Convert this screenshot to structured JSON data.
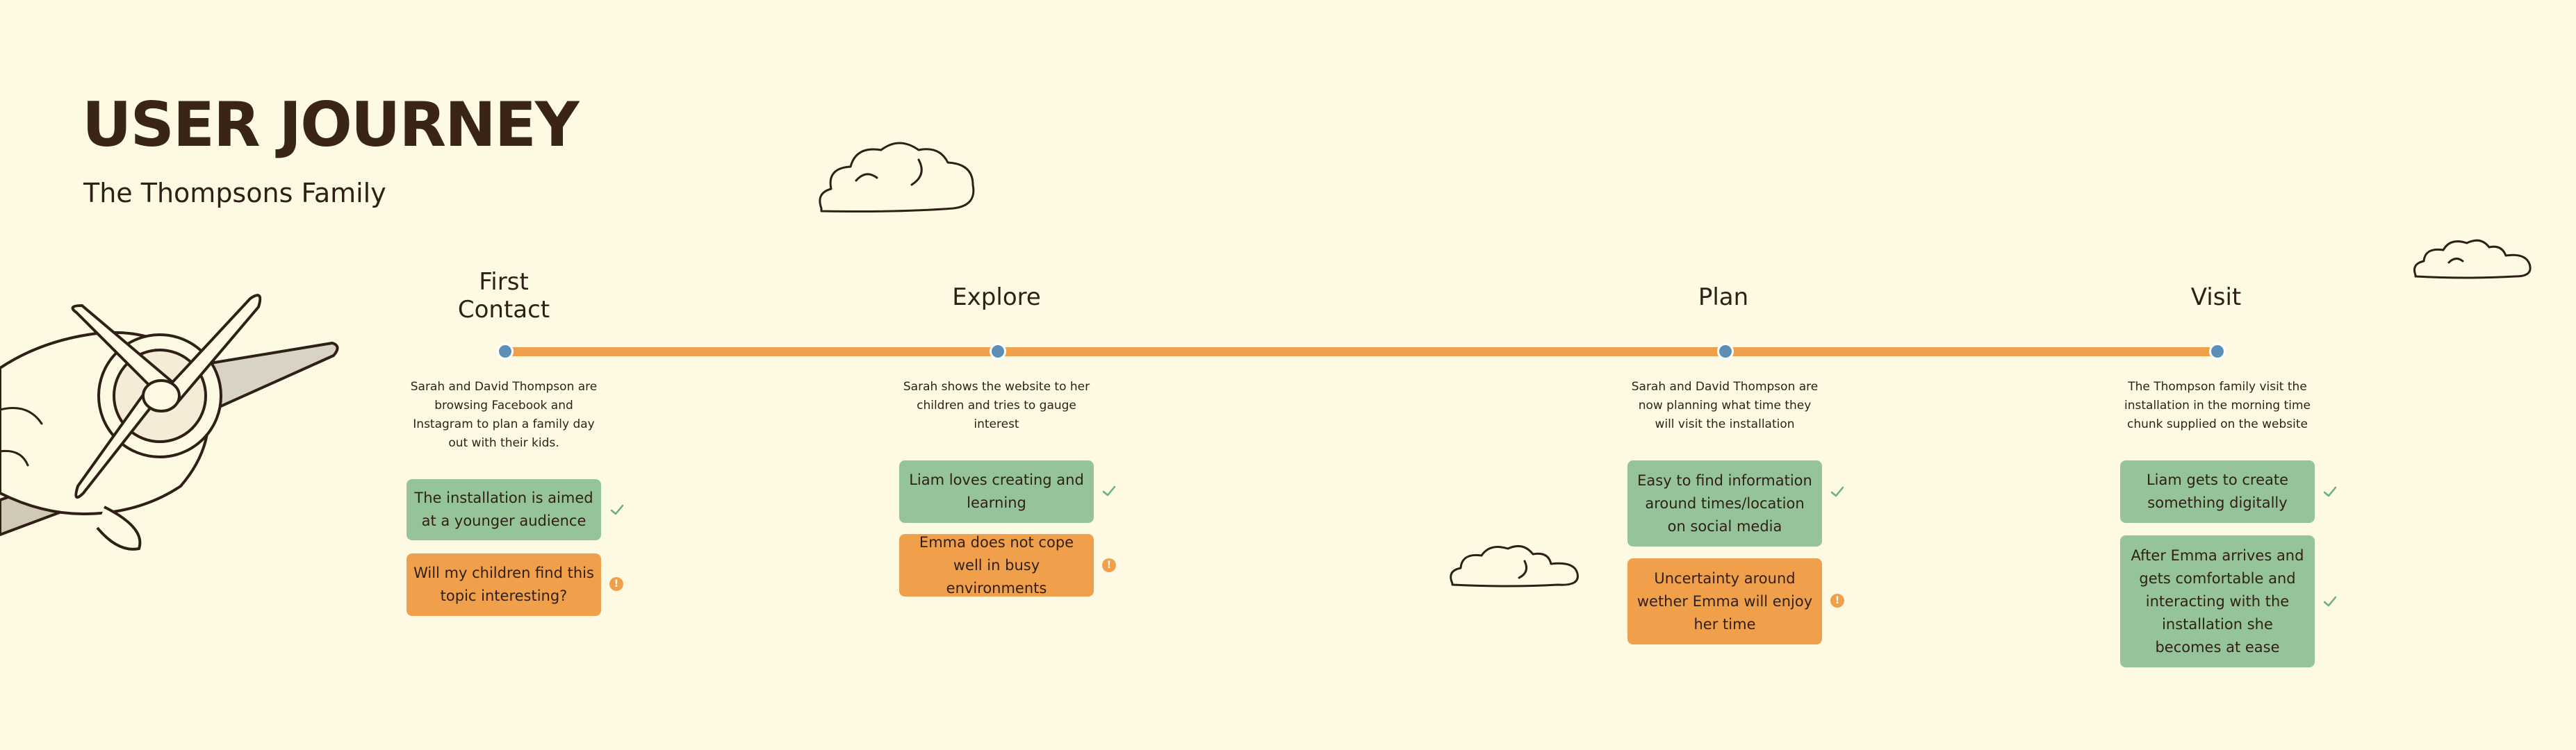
{
  "header": {
    "title": "USER JOURNEY",
    "subtitle": "The Thompsons Family"
  },
  "colors": {
    "background": "#fdf9e3",
    "timeline": "#f0a04b",
    "node": "#5b8fb5",
    "positive": "#96c49a",
    "concern": "#f0a04b",
    "text": "#2f1f16"
  },
  "stages": [
    {
      "title_line1": "First",
      "title_line2": "Contact",
      "description": "Sarah and David Thompson are browsing Facebook and Instagram to plan a family day out with their kids.",
      "positive": "The installation is aimed at a younger audience",
      "concern": "Will my children find this topic interesting?"
    },
    {
      "title": "Explore",
      "description": "Sarah shows the website to her children and tries to gauge interest",
      "positive": "Liam loves creating and learning",
      "concern": "Emma does not cope well in busy environments"
    },
    {
      "title": "Plan",
      "description": "Sarah and David Thompson are now planning what time they will visit the installation",
      "positive": "Easy to find information around times/location on social media",
      "concern": "Uncertainty around wether Emma will enjoy her time"
    },
    {
      "title": "Visit",
      "description": "The Thompson family visit the installation in the morning time chunk supplied on the website",
      "positive": "Liam gets to create something digitally",
      "positive_2": "After Emma arrives and gets comfortable and interacting with the installation she becomes at ease"
    }
  ],
  "icons": {
    "positive": "check-icon",
    "concern": "exclamation-icon",
    "decorations": [
      "cloud-icon",
      "airplane-illustration"
    ]
  }
}
